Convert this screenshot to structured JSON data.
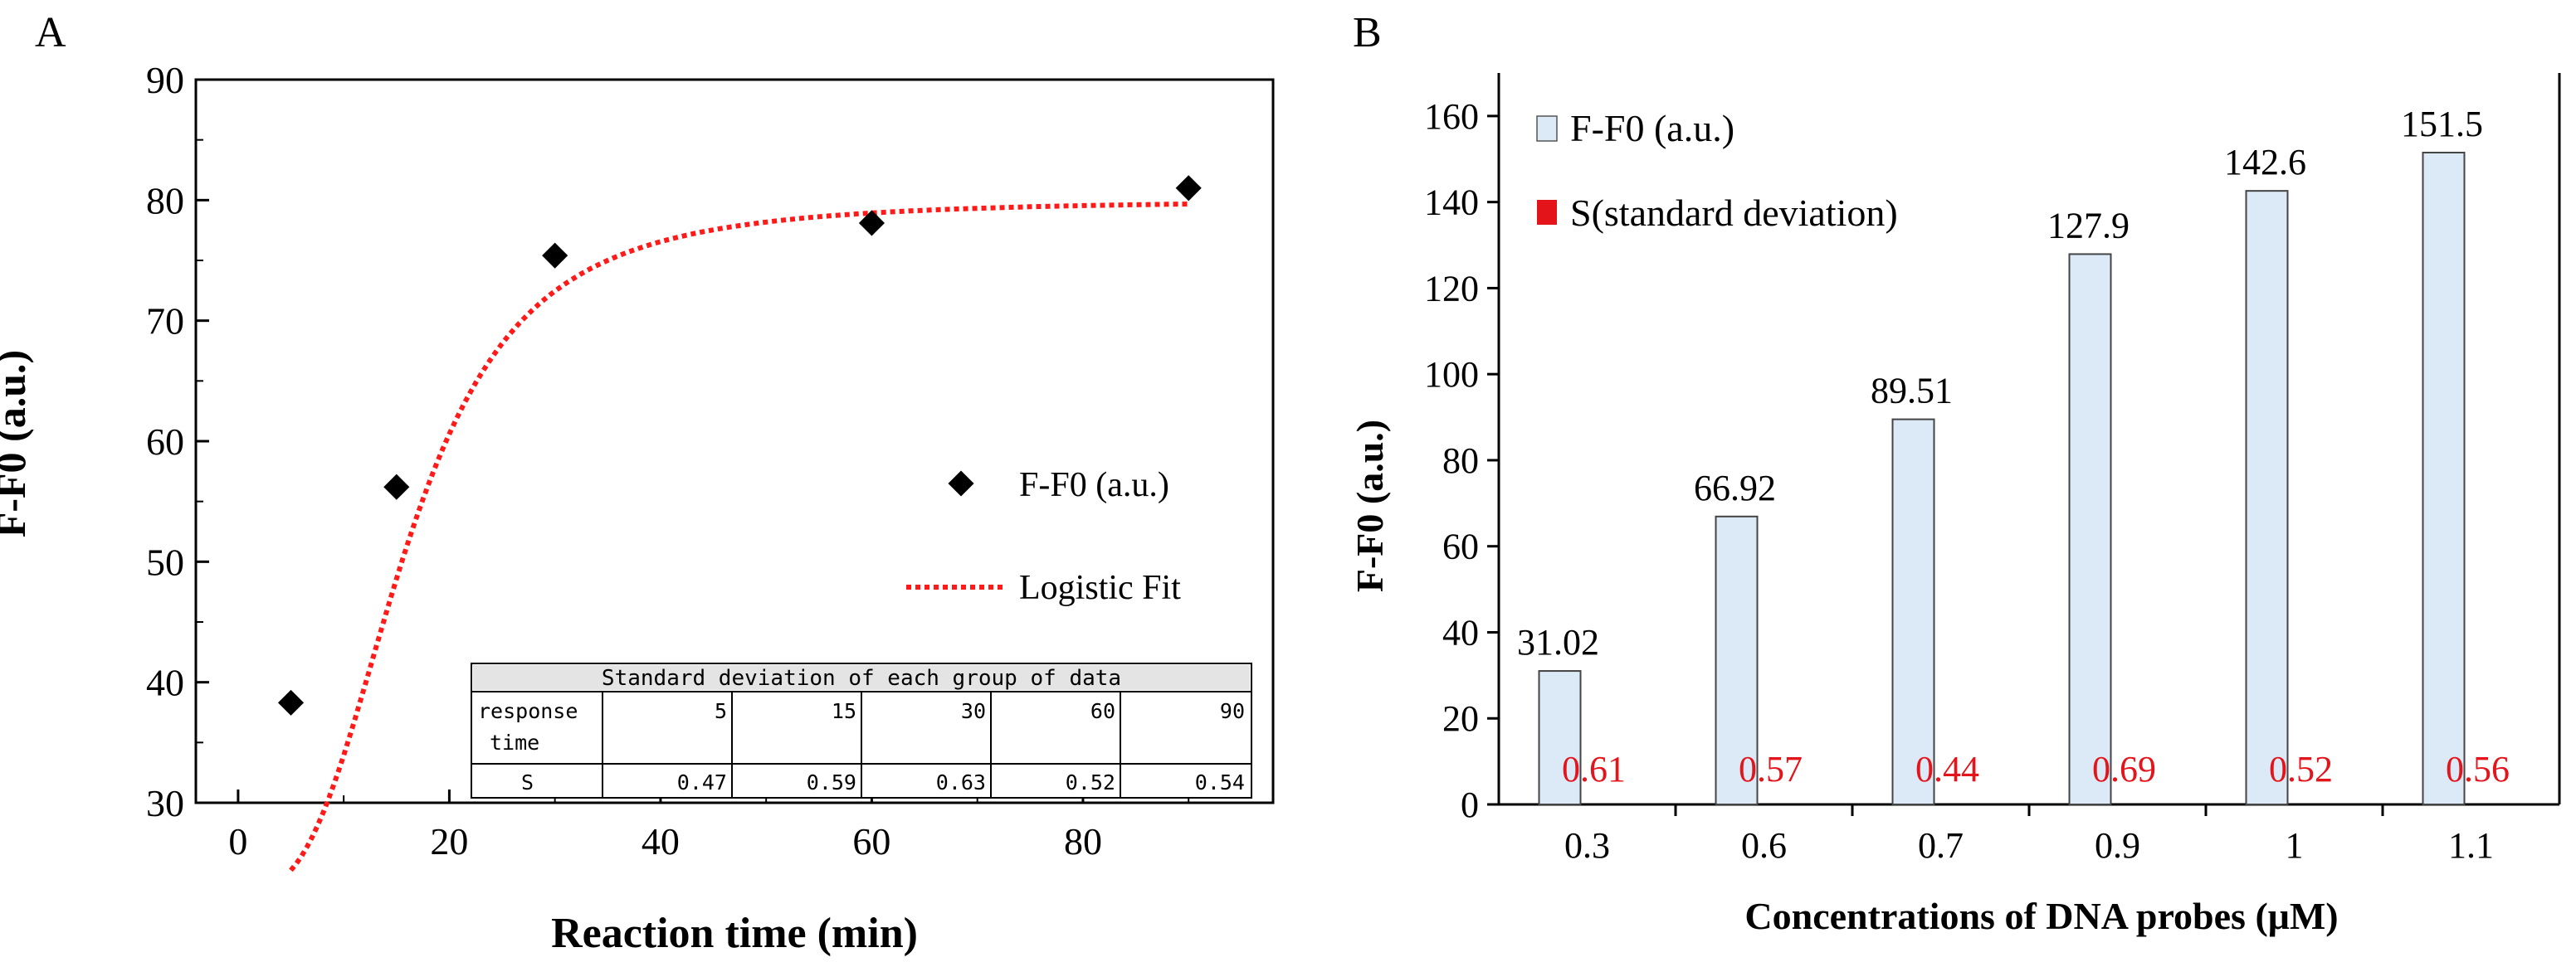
{
  "chart_data": [
    {
      "panel_label": "A",
      "type": "scatter",
      "title": "",
      "xlabel": "Reaction time (min)",
      "ylabel": "F-F0 (a.u.)",
      "xlim": [
        -4,
        98
      ],
      "ylim": [
        30,
        90
      ],
      "xticks": [
        0,
        20,
        40,
        60,
        80
      ],
      "yticks": [
        30,
        40,
        50,
        60,
        70,
        80,
        90
      ],
      "series": [
        {
          "name": "F-F0 (a.u.)",
          "kind": "points",
          "color": "#000000",
          "x": [
            5,
            15,
            30,
            60,
            90
          ],
          "y": [
            38.3,
            56.2,
            75.4,
            78.1,
            81.0
          ]
        },
        {
          "name": "Logistic Fit",
          "kind": "fit-line",
          "color": "#ff1a1a",
          "model": {
            "A1": 22.7,
            "A2": 80.0,
            "x0": 16.0,
            "p": 3.0
          },
          "x_range": [
            5,
            90
          ]
        }
      ],
      "legend": [
        "F-F0 (a.u.)",
        "Logistic Fit"
      ],
      "inset_table": {
        "title": "Standard deviation of each group of data",
        "row1_label": "response time",
        "row1_label_lines": [
          "response",
          "time"
        ],
        "row2_label": "S",
        "times": [
          "5",
          "15",
          "30",
          "60",
          "90"
        ],
        "s_values": [
          "0.47",
          "0.59",
          "0.63",
          "0.52",
          "0.54"
        ]
      }
    },
    {
      "panel_label": "B",
      "type": "bar",
      "title": "",
      "xlabel": "Concentrations of DNA probes  (μM)",
      "ylabel": "F-F0 (a.u.)",
      "ylim": [
        0,
        170
      ],
      "yticks": [
        0,
        20,
        40,
        60,
        80,
        100,
        120,
        140,
        160
      ],
      "categories": [
        "0.3",
        "0.6",
        "0.7",
        "0.9",
        "1",
        "1.1"
      ],
      "series": [
        {
          "name": "F-F0 (a.u.)",
          "color": "#dce9f6",
          "values": [
            31.02,
            66.92,
            89.51,
            127.9,
            142.6,
            151.5
          ],
          "labels": [
            "31.02",
            "66.92",
            "89.51",
            "127.9",
            "142.6",
            "151.5"
          ]
        },
        {
          "name": "S(standard deviation)",
          "color": "#e3141a",
          "values": [
            0.61,
            0.57,
            0.44,
            0.69,
            0.52,
            0.56
          ],
          "labels": [
            "0.61",
            "0.57",
            "0.44",
            "0.69",
            "0.52",
            "0.56"
          ]
        }
      ],
      "legend": [
        "F-F0 (a.u.)",
        "S(standard deviation)"
      ]
    }
  ]
}
